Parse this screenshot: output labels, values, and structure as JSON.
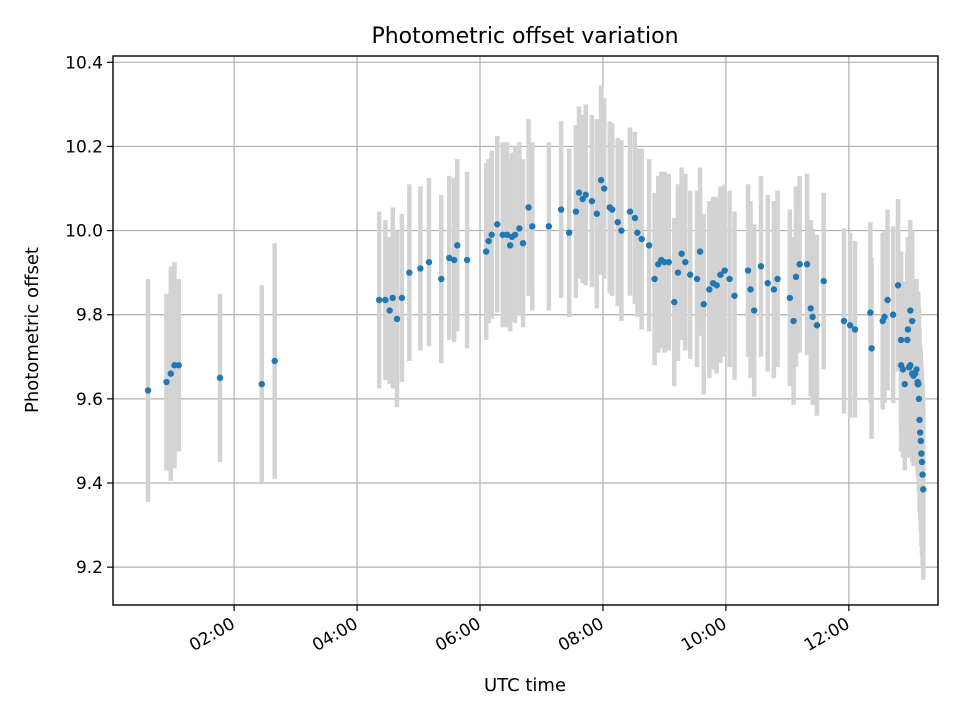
{
  "chart_data": {
    "type": "scatter",
    "title": "Photometric offset variation",
    "xlabel": "UTC time",
    "ylabel": "Photometric offset",
    "x_unit": "hours (UTC)",
    "xlim": [
      0.03,
      13.45
    ],
    "ylim": [
      9.11,
      10.415
    ],
    "x_ticks": [
      {
        "value": 2,
        "label": "02:00"
      },
      {
        "value": 4,
        "label": "04:00"
      },
      {
        "value": 6,
        "label": "06:00"
      },
      {
        "value": 8,
        "label": "08:00"
      },
      {
        "value": 10,
        "label": "10:00"
      },
      {
        "value": 12,
        "label": "12:00"
      }
    ],
    "y_ticks": [
      {
        "value": 9.2,
        "label": "9.2"
      },
      {
        "value": 9.4,
        "label": "9.4"
      },
      {
        "value": 9.6,
        "label": "9.6"
      },
      {
        "value": 9.8,
        "label": "9.8"
      },
      {
        "value": 10.0,
        "label": "10.0"
      },
      {
        "value": 10.2,
        "label": "10.2"
      },
      {
        "value": 10.4,
        "label": "10.4"
      }
    ],
    "grid": true,
    "legend": "none",
    "colors": {
      "points": "#1f77b4",
      "error_bars": "#d3d3d3"
    },
    "series": [
      {
        "x": [
          0.6,
          0.9,
          0.97,
          1.03,
          1.1,
          1.77,
          2.45,
          2.66,
          4.36,
          4.46,
          4.53,
          4.58,
          4.65,
          4.73,
          4.85,
          5.03,
          5.17,
          5.37,
          5.5,
          5.58,
          5.63,
          5.79,
          6.1,
          6.14,
          6.19,
          6.28,
          6.37,
          6.44,
          6.49,
          6.52,
          6.57,
          6.64,
          6.7,
          6.79,
          6.85,
          7.12,
          7.32,
          7.45,
          7.56,
          7.61,
          7.67,
          7.72,
          7.82,
          7.9,
          7.97,
          8.02,
          8.11,
          8.15,
          8.24,
          8.3,
          8.44,
          8.52,
          8.56,
          8.63,
          8.75,
          8.84,
          8.9,
          8.95,
          9.0,
          9.07,
          9.16,
          9.22,
          9.28,
          9.34,
          9.42,
          9.53,
          9.58,
          9.64,
          9.73,
          9.79,
          9.85,
          9.91,
          9.98,
          10.06,
          10.14,
          10.36,
          10.4,
          10.46,
          10.57,
          10.68,
          10.78,
          10.84,
          11.04,
          11.1,
          11.14,
          11.2,
          11.32,
          11.38,
          11.41,
          11.48,
          11.59,
          11.92,
          12.02,
          12.1,
          12.35,
          12.37,
          12.55,
          12.58,
          12.63,
          12.72,
          12.8,
          12.85,
          12.96,
          13.0,
          13.03,
          13.12
        ],
        "y": [
          9.62,
          9.64,
          9.66,
          9.68,
          9.68,
          9.65,
          9.635,
          9.69,
          9.835,
          9.835,
          9.81,
          9.84,
          9.79,
          9.84,
          9.9,
          9.91,
          9.925,
          9.885,
          9.935,
          9.93,
          9.965,
          9.93,
          9.95,
          9.975,
          9.99,
          10.015,
          9.99,
          9.99,
          9.965,
          9.985,
          9.99,
          10.005,
          9.97,
          10.055,
          10.01,
          10.01,
          10.05,
          9.995,
          10.045,
          10.09,
          10.075,
          10.085,
          10.07,
          10.04,
          10.12,
          10.1,
          10.055,
          10.05,
          10.02,
          10.0,
          10.045,
          10.03,
          9.995,
          9.98,
          9.965,
          9.885,
          9.92,
          9.93,
          9.925,
          9.925,
          9.83,
          9.9,
          9.945,
          9.925,
          9.895,
          9.885,
          9.95,
          9.825,
          9.86,
          9.875,
          9.87,
          9.895,
          9.905,
          9.885,
          9.845,
          9.905,
          9.86,
          9.81,
          9.915,
          9.875,
          9.86,
          9.885,
          9.84,
          9.785,
          9.89,
          9.92,
          9.92,
          9.815,
          9.795,
          9.775,
          9.88,
          9.785,
          9.775,
          9.765,
          9.805,
          9.72,
          9.785,
          9.795,
          9.835,
          9.8,
          9.87,
          9.74,
          9.765,
          9.81,
          9.785,
          9.635
        ],
        "yerr": [
          0.265,
          0.21,
          0.255,
          0.245,
          0.205,
          0.2,
          0.235,
          0.28,
          0.21,
          0.19,
          0.175,
          0.215,
          0.21,
          0.2,
          0.21,
          0.195,
          0.2,
          0.2,
          0.195,
          0.195,
          0.205,
          0.21,
          0.21,
          0.195,
          0.2,
          0.21,
          0.22,
          0.22,
          0.205,
          0.2,
          0.21,
          0.205,
          0.2,
          0.21,
          0.2,
          0.2,
          0.21,
          0.2,
          0.205,
          0.205,
          0.2,
          0.215,
          0.205,
          0.225,
          0.225,
          0.215,
          0.205,
          0.205,
          0.2,
          0.215,
          0.2,
          0.205,
          0.2,
          0.215,
          0.205,
          0.205,
          0.21,
          0.21,
          0.215,
          0.21,
          0.2,
          0.21,
          0.205,
          0.21,
          0.2,
          0.21,
          0.2,
          0.215,
          0.21,
          0.205,
          0.21,
          0.21,
          0.205,
          0.21,
          0.2,
          0.205,
          0.21,
          0.205,
          0.215,
          0.21,
          0.21,
          0.21,
          0.21,
          0.2,
          0.215,
          0.21,
          0.215,
          0.21,
          0.21,
          0.215,
          0.21,
          0.22,
          0.22,
          0.21,
          0.215,
          0.215,
          0.21,
          0.205,
          0.215,
          0.21,
          0.205,
          0.21,
          0.22,
          0.215,
          0.215,
          0.215
        ]
      },
      {
        "x": [
          12.85,
          12.88,
          12.91,
          12.95,
          12.98,
          13.0,
          13.03,
          13.05,
          13.08,
          13.1,
          13.12,
          13.13,
          13.14,
          13.15,
          13.16,
          13.17,
          13.18,
          13.19,
          13.2,
          13.21
        ],
        "y": [
          9.68,
          9.67,
          9.635,
          9.74,
          9.675,
          9.68,
          9.66,
          9.655,
          9.66,
          9.67,
          9.64,
          9.635,
          9.6,
          9.55,
          9.52,
          9.5,
          9.47,
          9.45,
          9.42,
          9.385
        ],
        "yerr": [
          0.205,
          0.21,
          0.205,
          0.21,
          0.215,
          0.21,
          0.21,
          0.215,
          0.22,
          0.215,
          0.215,
          0.22,
          0.22,
          0.22,
          0.21,
          0.215,
          0.22,
          0.22,
          0.215,
          0.215
        ]
      }
    ]
  }
}
